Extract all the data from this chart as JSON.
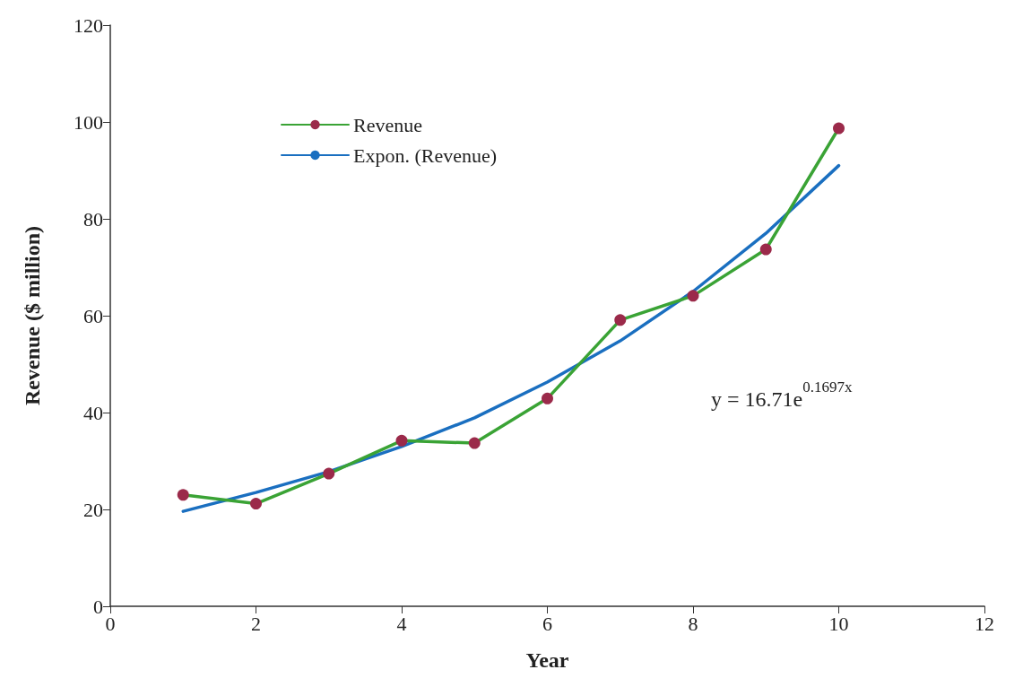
{
  "chart_data": {
    "type": "line",
    "xlabel": "Year",
    "ylabel": "Revenue ($ million)",
    "xlim": [
      0,
      12
    ],
    "xticks": [
      0,
      2,
      4,
      6,
      8,
      10,
      12
    ],
    "ylim": [
      0,
      120
    ],
    "yticks": [
      0,
      20,
      40,
      60,
      80,
      100,
      120
    ],
    "grid": false,
    "legend": "top left",
    "line_style": "solid",
    "series": [
      {
        "name": "Revenue",
        "color": "#3aa335",
        "marker": "circle",
        "colors": [
          "#9b2a4a",
          "#9b2a4a",
          "#9b2a4a",
          "#9b2a4a",
          "#9b2a4a",
          "#9b2a4a",
          "#9b2a4a",
          "#9b2a4a",
          "#9b2a4a",
          "#9b2a4a"
        ],
        "x": [
          1,
          2,
          3,
          4,
          5,
          6,
          7,
          8,
          9,
          10
        ],
        "values": [
          23.0,
          21.2,
          27.4,
          34.2,
          33.7,
          42.9,
          59.1,
          64.1,
          73.7,
          98.7
        ]
      },
      {
        "name": "Expon. (Revenue)",
        "color": "#1a6fc0",
        "marker": "none",
        "x": [
          1,
          2,
          3,
          4,
          5,
          6,
          7,
          8,
          9,
          10
        ],
        "values": [
          19.6,
          23.5,
          27.8,
          33.0,
          38.9,
          46.3,
          54.8,
          65.0,
          77.0,
          91.0
        ]
      }
    ],
    "annotations": [
      "y = 16.71e$^{0.1697x}$"
    ]
  }
}
